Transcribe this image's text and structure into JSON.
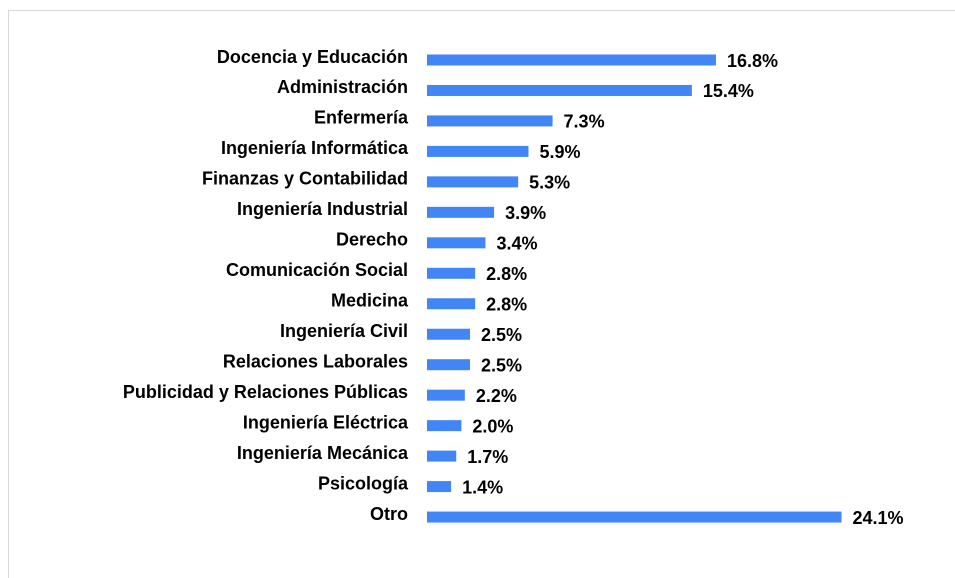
{
  "chart_data": {
    "type": "bar",
    "orientation": "horizontal",
    "color": "#4285f4",
    "categories": [
      "Docencia y Educación",
      "Administración",
      "Enfermería",
      "Ingeniería Informática",
      "Finanzas y Contabilidad",
      "Ingeniería Industrial",
      "Derecho",
      "Comunicación Social",
      "Medicina",
      "Ingeniería Civil",
      "Relaciones Laborales",
      "Publicidad y Relaciones Públicas",
      "Ingeniería Eléctrica",
      "Ingeniería Mecánica",
      "Psicología",
      "Otro"
    ],
    "values": [
      16.8,
      15.4,
      7.3,
      5.9,
      5.3,
      3.9,
      3.4,
      2.8,
      2.8,
      2.5,
      2.5,
      2.2,
      2.0,
      1.7,
      1.4,
      24.1
    ],
    "value_labels": [
      "16.8%",
      "15.4%",
      "7.3%",
      "5.9%",
      "5.3%",
      "3.9%",
      "3.4%",
      "2.8%",
      "2.8%",
      "2.5%",
      "2.5%",
      "2.2%",
      "2.0%",
      "1.7%",
      "1.4%",
      "24.1%"
    ]
  }
}
